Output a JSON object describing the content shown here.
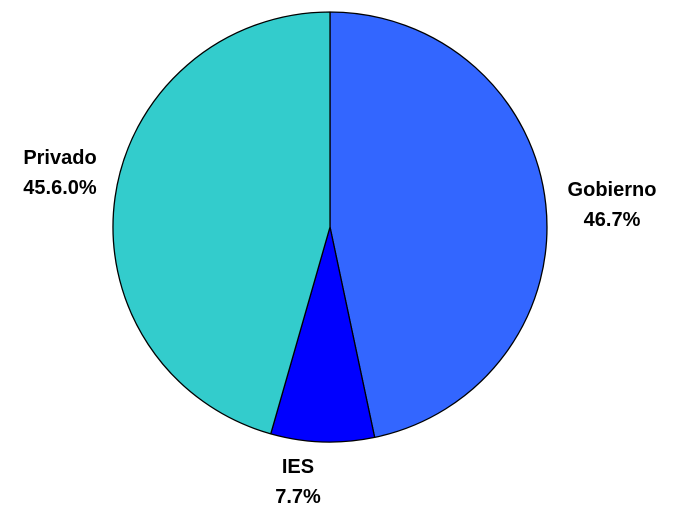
{
  "chart_data": {
    "type": "pie",
    "slices": [
      {
        "label": "Gobierno",
        "value": 46.7,
        "value_label": "46.7%",
        "color": "#3366ff"
      },
      {
        "label": "IES",
        "value": 7.7,
        "value_label": "7.7%",
        "color": "#0000ff"
      },
      {
        "label": "Privado",
        "value": 45.6,
        "value_label": "45.6.0%",
        "color": "#33cccc"
      }
    ],
    "start": "12 o'clock",
    "direction": "clockwise",
    "legend": "none",
    "labels": "outside"
  }
}
